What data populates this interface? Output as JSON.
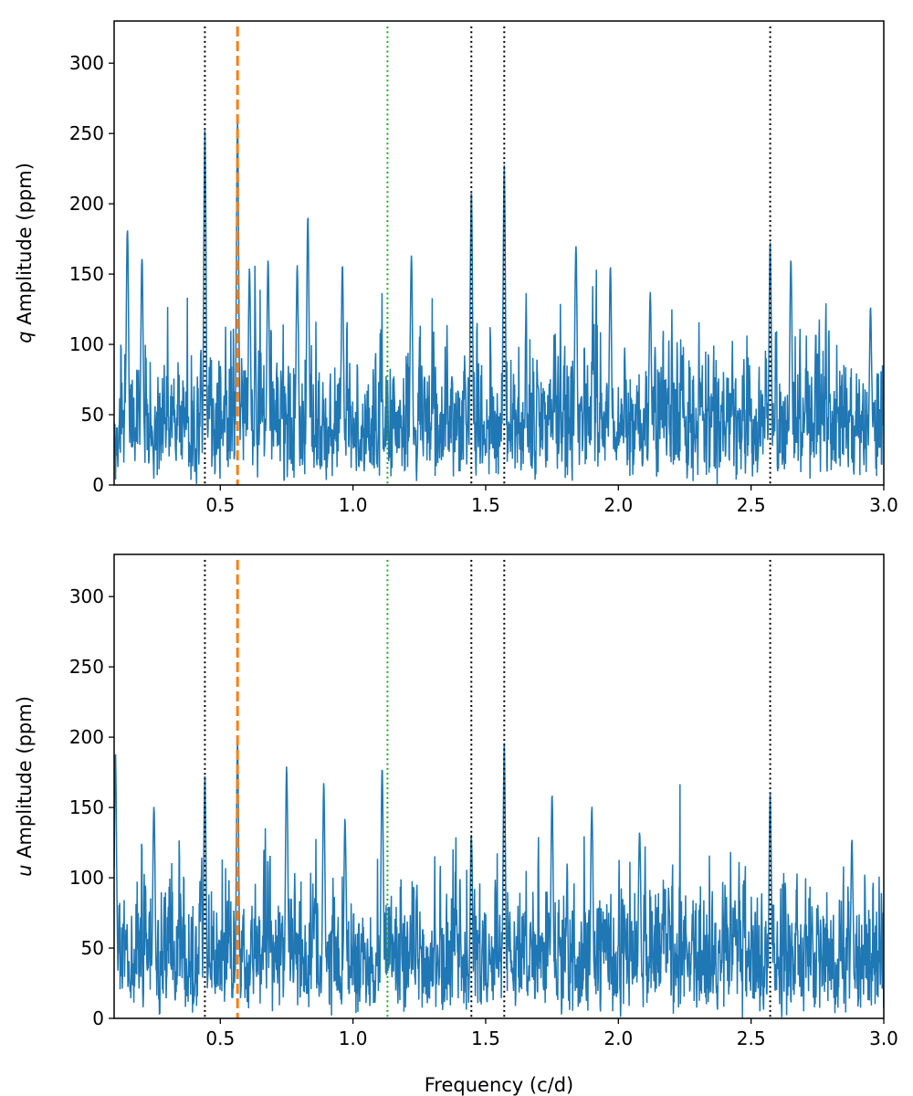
{
  "chart_data": [
    {
      "type": "line",
      "panel": "top",
      "ylabel_var": "q",
      "ylabel_rest": " Amplitude (ppm)",
      "xlabel": "",
      "xlim": [
        0.1,
        3.0
      ],
      "ylim": [
        0,
        330
      ],
      "xticks": [
        "0.5",
        "1.0",
        "1.5",
        "2.0",
        "2.5",
        "3.0"
      ],
      "xtick_values": [
        0.5,
        1.0,
        1.5,
        2.0,
        2.5,
        3.0
      ],
      "yticks": [
        "0",
        "50",
        "100",
        "150",
        "200",
        "250",
        "300"
      ],
      "ytick_values": [
        0,
        50,
        100,
        150,
        200,
        250,
        300
      ],
      "grid": false,
      "series": [
        {
          "name": "q amplitude spectrum",
          "color": "#1f77b4",
          "seed": 11,
          "noise_level": 48,
          "peaks": [
            {
              "f": 0.15,
              "a": 180
            },
            {
              "f": 0.205,
              "a": 160
            },
            {
              "f": 0.442,
              "a": 253
            },
            {
              "f": 0.565,
              "a": 260
            },
            {
              "f": 0.61,
              "a": 150
            },
            {
              "f": 0.68,
              "a": 160
            },
            {
              "f": 0.83,
              "a": 190
            },
            {
              "f": 0.79,
              "a": 155
            },
            {
              "f": 0.96,
              "a": 155
            },
            {
              "f": 1.22,
              "a": 162
            },
            {
              "f": 1.446,
              "a": 208
            },
            {
              "f": 1.57,
              "a": 226
            },
            {
              "f": 1.84,
              "a": 170
            },
            {
              "f": 1.97,
              "a": 155
            },
            {
              "f": 2.12,
              "a": 135
            },
            {
              "f": 2.572,
              "a": 172
            },
            {
              "f": 2.65,
              "a": 160
            },
            {
              "f": 2.95,
              "a": 125
            }
          ]
        }
      ]
    },
    {
      "type": "line",
      "panel": "bottom",
      "ylabel_var": "u",
      "ylabel_rest": " Amplitude (ppm)",
      "xlabel": "Frequency (c/d)",
      "xlim": [
        0.1,
        3.0
      ],
      "ylim": [
        0,
        330
      ],
      "xticks": [
        "0.5",
        "1.0",
        "1.5",
        "2.0",
        "2.5",
        "3.0"
      ],
      "xtick_values": [
        0.5,
        1.0,
        1.5,
        2.0,
        2.5,
        3.0
      ],
      "yticks": [
        "0",
        "50",
        "100",
        "150",
        "200",
        "250",
        "300"
      ],
      "ytick_values": [
        0,
        50,
        100,
        150,
        200,
        250,
        300
      ],
      "grid": false,
      "series": [
        {
          "name": "u amplitude spectrum",
          "color": "#1f77b4",
          "seed": 29,
          "noise_level": 48,
          "peaks": [
            {
              "f": 0.105,
              "a": 188
            },
            {
              "f": 0.25,
              "a": 150
            },
            {
              "f": 0.442,
              "a": 172
            },
            {
              "f": 0.565,
              "a": 198
            },
            {
              "f": 0.75,
              "a": 178
            },
            {
              "f": 0.89,
              "a": 165
            },
            {
              "f": 0.97,
              "a": 140
            },
            {
              "f": 1.11,
              "a": 178
            },
            {
              "f": 1.446,
              "a": 128
            },
            {
              "f": 1.57,
              "a": 192
            },
            {
              "f": 1.75,
              "a": 158
            },
            {
              "f": 1.9,
              "a": 150
            },
            {
              "f": 2.08,
              "a": 132
            },
            {
              "f": 2.572,
              "a": 160
            },
            {
              "f": 2.88,
              "a": 124
            }
          ]
        }
      ]
    }
  ],
  "markers": [
    {
      "name": "dotted-black",
      "f": 0.442,
      "color": "#000000",
      "style": "dotted"
    },
    {
      "name": "dashed-orange",
      "f": 0.565,
      "color": "#ff7f0e",
      "style": "dashed"
    },
    {
      "name": "dotted-green",
      "f": 1.13,
      "color": "#2ca02c",
      "style": "dotted"
    },
    {
      "name": "dotted-black",
      "f": 1.446,
      "color": "#000000",
      "style": "dotted"
    },
    {
      "name": "dotted-black",
      "f": 1.57,
      "color": "#000000",
      "style": "dotted"
    },
    {
      "name": "dotted-black",
      "f": 2.572,
      "color": "#000000",
      "style": "dotted"
    }
  ]
}
